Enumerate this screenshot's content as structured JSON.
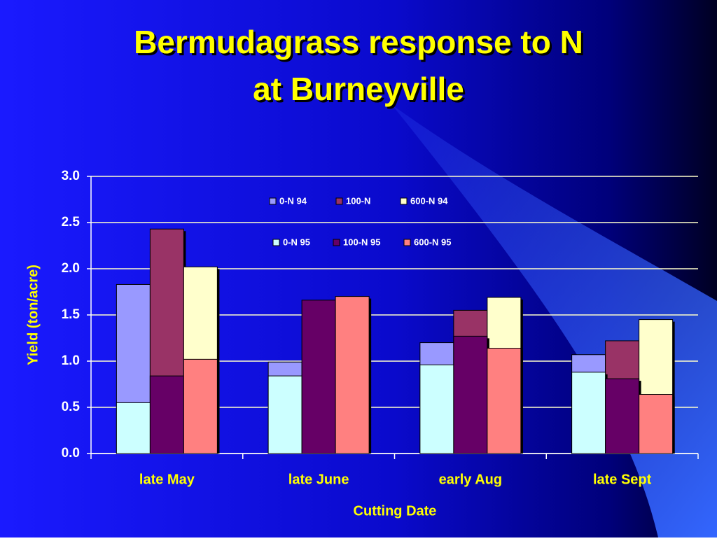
{
  "chart_data": {
    "type": "bar",
    "title": "Bermudagrass response to N",
    "subtitle": "at Burneyville",
    "x_label": "Cutting Date",
    "y_label": "Yield (ton/acre)",
    "categories": [
      "late May",
      "late June",
      "early Aug",
      "late Sept"
    ],
    "series": [
      {
        "name": "0-N 94",
        "color": "#9999ff",
        "values": [
          1.83,
          0.99,
          1.2,
          1.07
        ]
      },
      {
        "name": "100-N",
        "color": "#993366",
        "values": [
          2.43,
          null,
          1.55,
          1.22
        ]
      },
      {
        "name": "600-N 94",
        "color": "#ffffcc",
        "values": [
          2.02,
          null,
          1.69,
          1.45
        ]
      },
      {
        "name": "0-N 95",
        "color": "#ccffff",
        "values": [
          0.55,
          0.84,
          0.96,
          0.88
        ]
      },
      {
        "name": "100-N 95",
        "color": "#660066",
        "values": [
          0.84,
          1.66,
          1.27,
          0.81
        ]
      },
      {
        "name": "600-N 95",
        "color": "#ff8080",
        "values": [
          1.02,
          1.7,
          1.14,
          0.64
        ]
      }
    ],
    "ylim": [
      0,
      3
    ],
    "yticks": [
      {
        "value": 0,
        "label": "0.0"
      },
      0.5,
      {
        "value": 1,
        "label": "1.0"
      },
      1.5,
      {
        "value": 2,
        "label": "2.0"
      },
      2.5,
      {
        "value": 3,
        "label": "3.0"
      }
    ],
    "grid": true
  }
}
